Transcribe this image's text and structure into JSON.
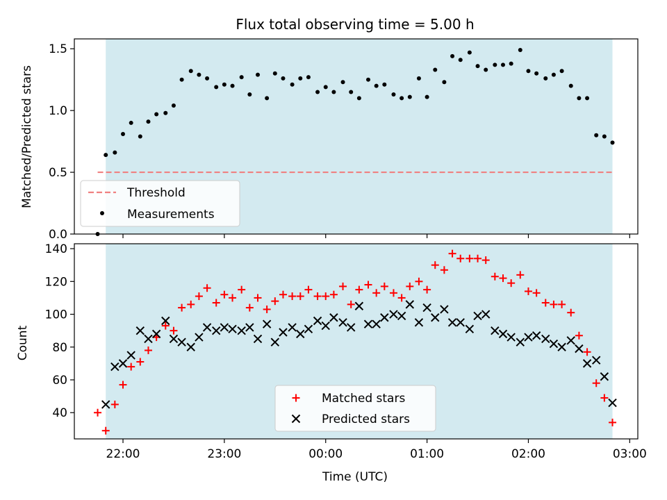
{
  "chart_data": [
    {
      "type": "scatter",
      "title": "Flux total observing time = 5.00 h",
      "xlabel": "",
      "ylabel": "Matched/Predicted stars",
      "ylim": [
        0,
        1.58
      ],
      "xlim_hours": [
        21.52,
        27.08
      ],
      "x_ticks": [
        22,
        23,
        24,
        25,
        26,
        27
      ],
      "y_ticks": [
        0.0,
        0.5,
        1.0,
        1.5
      ],
      "y_tick_labels": [
        "0.0",
        "0.5",
        "1.0",
        "1.5"
      ],
      "shaded_span_hours": [
        21.83,
        26.83
      ],
      "shaded_color": "#d3eaf0",
      "threshold": {
        "name": "Threshold",
        "y": 0.5,
        "x_range_hours": [
          21.75,
          26.83
        ],
        "color": "#f08080"
      },
      "series": [
        {
          "name": "Measurements",
          "marker": "dot",
          "color": "#000000",
          "x_hours": [
            21.75,
            21.83,
            21.92,
            22.0,
            22.08,
            22.17,
            22.25,
            22.33,
            22.42,
            22.5,
            22.58,
            22.67,
            22.75,
            22.83,
            22.92,
            23.0,
            23.08,
            23.17,
            23.25,
            23.33,
            23.42,
            23.5,
            23.58,
            23.67,
            23.75,
            23.83,
            23.92,
            24.0,
            24.08,
            24.17,
            24.25,
            24.33,
            24.42,
            24.5,
            24.58,
            24.67,
            24.75,
            24.83,
            24.92,
            25.0,
            25.08,
            25.17,
            25.25,
            25.33,
            25.42,
            25.5,
            25.58,
            25.67,
            25.75,
            25.83,
            25.92,
            26.0,
            26.08,
            26.17,
            26.25,
            26.33,
            26.42,
            26.5,
            26.58,
            26.67,
            26.75,
            26.83
          ],
          "values": [
            0.0,
            0.64,
            0.66,
            0.81,
            0.9,
            0.79,
            0.91,
            0.97,
            0.98,
            1.04,
            1.25,
            1.32,
            1.29,
            1.26,
            1.19,
            1.21,
            1.2,
            1.27,
            1.13,
            1.29,
            1.1,
            1.3,
            1.26,
            1.21,
            1.26,
            1.27,
            1.15,
            1.19,
            1.15,
            1.23,
            1.15,
            1.1,
            1.25,
            1.2,
            1.21,
            1.13,
            1.1,
            1.11,
            1.26,
            1.11,
            1.33,
            1.23,
            1.44,
            1.41,
            1.47,
            1.36,
            1.33,
            1.37,
            1.37,
            1.38,
            1.49,
            1.32,
            1.3,
            1.26,
            1.29,
            1.32,
            1.2,
            1.1,
            1.1,
            0.8,
            0.79,
            0.74
          ]
        }
      ],
      "legend_loc": "lower left"
    },
    {
      "type": "scatter",
      "title": "",
      "xlabel": "Time (UTC)",
      "ylabel": "Count",
      "ylim": [
        24,
        143
      ],
      "xlim_hours": [
        21.52,
        27.08
      ],
      "x_ticks": [
        22,
        23,
        24,
        25,
        26,
        27
      ],
      "x_tick_labels": [
        "22:00",
        "23:00",
        "00:00",
        "01:00",
        "02:00",
        "03:00"
      ],
      "y_ticks": [
        40,
        60,
        80,
        100,
        120,
        140
      ],
      "y_tick_labels": [
        "40",
        "60",
        "80",
        "100",
        "120",
        "140"
      ],
      "shaded_span_hours": [
        21.83,
        26.83
      ],
      "shaded_color": "#d3eaf0",
      "series": [
        {
          "name": "Matched stars",
          "marker": "plus",
          "color": "#ff0000",
          "x_hours": [
            21.75,
            21.83,
            21.92,
            22.0,
            22.08,
            22.17,
            22.25,
            22.33,
            22.42,
            22.5,
            22.58,
            22.67,
            22.75,
            22.83,
            22.92,
            23.0,
            23.08,
            23.17,
            23.25,
            23.33,
            23.42,
            23.5,
            23.58,
            23.67,
            23.75,
            23.83,
            23.92,
            24.0,
            24.08,
            24.17,
            24.25,
            24.33,
            24.42,
            24.5,
            24.58,
            24.67,
            24.75,
            24.83,
            24.92,
            25.0,
            25.08,
            25.17,
            25.25,
            25.33,
            25.42,
            25.5,
            25.58,
            25.67,
            25.75,
            25.83,
            25.92,
            26.0,
            26.08,
            26.17,
            26.25,
            26.33,
            26.42,
            26.5,
            26.58,
            26.67,
            26.75,
            26.83
          ],
          "values": [
            40,
            29,
            45,
            57,
            68,
            71,
            78,
            86,
            93,
            90,
            104,
            106,
            111,
            116,
            107,
            112,
            110,
            115,
            104,
            110,
            103,
            108,
            112,
            111,
            111,
            115,
            111,
            111,
            112,
            117,
            106,
            115,
            118,
            113,
            117,
            113,
            110,
            117,
            120,
            115,
            130,
            127,
            137,
            134,
            134,
            134,
            133,
            123,
            122,
            119,
            124,
            114,
            113,
            107,
            106,
            106,
            101,
            87,
            77,
            58,
            49,
            34
          ]
        },
        {
          "name": "Predicted stars",
          "marker": "x",
          "color": "#000000",
          "x_hours": [
            21.83,
            21.92,
            22.0,
            22.08,
            22.17,
            22.25,
            22.33,
            22.42,
            22.5,
            22.58,
            22.67,
            22.75,
            22.83,
            22.92,
            23.0,
            23.08,
            23.17,
            23.25,
            23.33,
            23.42,
            23.5,
            23.58,
            23.67,
            23.75,
            23.83,
            23.92,
            24.0,
            24.08,
            24.17,
            24.25,
            24.33,
            24.42,
            24.5,
            24.58,
            24.67,
            24.75,
            24.83,
            24.92,
            25.0,
            25.08,
            25.17,
            25.25,
            25.33,
            25.42,
            25.5,
            25.58,
            25.67,
            25.75,
            25.83,
            25.92,
            26.0,
            26.08,
            26.17,
            26.25,
            26.33,
            26.42,
            26.5,
            26.58,
            26.67,
            26.75,
            26.83
          ],
          "values": [
            45,
            68,
            70,
            75,
            90,
            85,
            88,
            96,
            85,
            83,
            80,
            86,
            92,
            90,
            92,
            91,
            90,
            92,
            85,
            94,
            83,
            89,
            92,
            88,
            91,
            96,
            93,
            98,
            95,
            92,
            105,
            94,
            94,
            98,
            100,
            99,
            106,
            95,
            104,
            98,
            103,
            95,
            95,
            91,
            99,
            100,
            90,
            88,
            86,
            83,
            86,
            87,
            85,
            82,
            80,
            84,
            79,
            70,
            72,
            62,
            46
          ]
        }
      ],
      "legend_loc": "lower center"
    }
  ]
}
